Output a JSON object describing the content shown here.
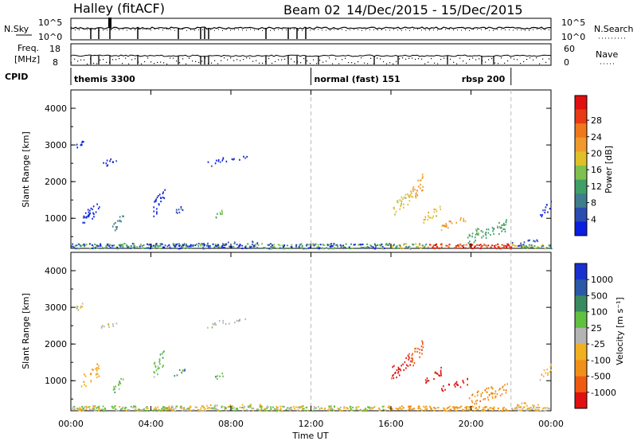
{
  "header": {
    "station": "Halley (fitACF)",
    "beam": "Beam 02",
    "date_range": "14/Dec/2015 - 15/Dec/2015"
  },
  "top_panels": {
    "nsky": {
      "label": "N.Sky",
      "ticks": [
        "10^5",
        "10^0"
      ]
    },
    "nsearch": {
      "label": "N.Search",
      "ticks": [
        "10^5",
        "10^0"
      ]
    },
    "freq": {
      "label_line1": "Freq.",
      "label_line2": "[MHz]",
      "ticks": [
        "18",
        "8"
      ]
    },
    "nave": {
      "label": "Nave",
      "ticks": [
        "60",
        "0"
      ]
    },
    "cpid": {
      "label": "CPID",
      "segments": [
        {
          "name": "themis 3300",
          "start_hour": 0
        },
        {
          "name": "normal (fast) 151",
          "start_hour": 12
        },
        {
          "name": "rbsp 200",
          "start_hour": 22
        }
      ]
    }
  },
  "chart_data": [
    {
      "type": "heatmap",
      "name": "power",
      "ylabel": "Slant Range [km]",
      "xlabel": "",
      "xlim": [
        0,
        24
      ],
      "ylim": [
        180,
        4500
      ],
      "y_ticks": [
        "1000",
        "2000",
        "3000",
        "4000"
      ],
      "x_ticks": [
        "00:00",
        "04:00",
        "08:00",
        "12:00",
        "16:00",
        "20:00",
        "00:00"
      ],
      "colorbar": {
        "label": "Power [dB]",
        "ticks": [
          "4",
          "8",
          "12",
          "16",
          "20",
          "24",
          "28"
        ],
        "colors": [
          "#0a1fe0",
          "#2b4cb0",
          "#3f7d8c",
          "#3f9f66",
          "#80c050",
          "#e0c028",
          "#f09a2c",
          "#f0781c",
          "#e83a14",
          "#e01010"
        ]
      },
      "scatter_regions": [
        {
          "x": [
            0.2,
            0.6
          ],
          "y": [
            2900,
            3150
          ],
          "level": 0
        },
        {
          "x": [
            0.5,
            1.4
          ],
          "y": [
            780,
            1520
          ],
          "level": 0
        },
        {
          "x": [
            2.0,
            2.6
          ],
          "y": [
            600,
            1200
          ],
          "level": 2
        },
        {
          "x": [
            1.5,
            2.3
          ],
          "y": [
            2400,
            2700
          ],
          "level": 0
        },
        {
          "x": [
            4.1,
            4.7
          ],
          "y": [
            1000,
            1950
          ],
          "level": 0
        },
        {
          "x": [
            5.1,
            5.7
          ],
          "y": [
            1100,
            1400
          ],
          "level": 1
        },
        {
          "x": [
            6.8,
            7.6
          ],
          "y": [
            2400,
            2700
          ],
          "level": 0
        },
        {
          "x": [
            7.6,
            8.8
          ],
          "y": [
            2550,
            2720
          ],
          "level": 0
        },
        {
          "x": [
            7.2,
            7.6
          ],
          "y": [
            1000,
            1300
          ],
          "level": 4
        },
        {
          "x": [
            4.0,
            9.5
          ],
          "y": [
            220,
            400
          ],
          "level": 1
        },
        {
          "x": [
            16.0,
            17.0
          ],
          "y": [
            1000,
            1800
          ],
          "level": 5
        },
        {
          "x": [
            17.0,
            17.6
          ],
          "y": [
            1300,
            2300
          ],
          "level": 6
        },
        {
          "x": [
            17.6,
            18.5
          ],
          "y": [
            900,
            1400
          ],
          "level": 5
        },
        {
          "x": [
            18.5,
            19.8
          ],
          "y": [
            700,
            1100
          ],
          "level": 6
        },
        {
          "x": [
            19.8,
            21.8
          ],
          "y": [
            300,
            1000
          ],
          "level": 3
        },
        {
          "x": [
            22.0,
            23.4
          ],
          "y": [
            220,
            500
          ],
          "level": 1
        },
        {
          "x": [
            23.4,
            24.0
          ],
          "y": [
            1000,
            1500
          ],
          "level": 0
        }
      ],
      "bands": [
        {
          "x": [
            0.0,
            15.8
          ],
          "y": [
            190,
            330
          ],
          "levels": [
            0,
            1,
            3,
            4
          ]
        },
        {
          "x": [
            15.8,
            17.8
          ],
          "y": [
            190,
            330
          ],
          "levels": [
            2,
            3,
            4,
            5
          ]
        },
        {
          "x": [
            17.8,
            22.0
          ],
          "y": [
            190,
            320
          ],
          "levels": [
            7,
            8,
            9
          ]
        },
        {
          "x": [
            22.0,
            24.0
          ],
          "y": [
            190,
            300
          ],
          "levels": [
            2,
            3,
            5
          ]
        }
      ]
    },
    {
      "type": "heatmap",
      "name": "velocity",
      "ylabel": "Slant Range [km]",
      "xlabel": "Time UT",
      "xlim": [
        0,
        24
      ],
      "ylim": [
        180,
        4500
      ],
      "y_ticks": [
        "1000",
        "2000",
        "3000",
        "4000"
      ],
      "x_ticks": [
        "00:00",
        "04:00",
        "08:00",
        "12:00",
        "16:00",
        "20:00",
        "00:00"
      ],
      "colorbar": {
        "label": "Velocity [m s⁻¹]",
        "ticks": [
          "1000",
          "500",
          "100",
          "25",
          "-25",
          "-100",
          "-500",
          "-1000"
        ],
        "colors": [
          "#1830d0",
          "#2c58a8",
          "#3a8a60",
          "#60c040",
          "#b4b4b4",
          "#f0b020",
          "#f09018",
          "#f05a10",
          "#e01010"
        ]
      },
      "scatter_regions": [
        {
          "x": [
            0.2,
            0.6
          ],
          "y": [
            2900,
            3150
          ],
          "level": 4
        },
        {
          "x": [
            0.5,
            1.4
          ],
          "y": [
            780,
            1520
          ],
          "level": 5
        },
        {
          "x": [
            2.0,
            2.6
          ],
          "y": [
            600,
            1200
          ],
          "level": 3
        },
        {
          "x": [
            1.5,
            2.3
          ],
          "y": [
            2400,
            2700
          ],
          "level": 4
        },
        {
          "x": [
            4.1,
            4.7
          ],
          "y": [
            1000,
            1950
          ],
          "level": 3
        },
        {
          "x": [
            5.1,
            5.7
          ],
          "y": [
            1100,
            1400
          ],
          "level": 2
        },
        {
          "x": [
            6.8,
            7.6
          ],
          "y": [
            2400,
            2700
          ],
          "level": 4
        },
        {
          "x": [
            7.6,
            8.8
          ],
          "y": [
            2550,
            2720
          ],
          "level": 4
        },
        {
          "x": [
            7.2,
            7.6
          ],
          "y": [
            1000,
            1300
          ],
          "level": 3
        },
        {
          "x": [
            4.0,
            9.5
          ],
          "y": [
            220,
            400
          ],
          "level": 5
        },
        {
          "x": [
            16.0,
            17.0
          ],
          "y": [
            1000,
            1800
          ],
          "level": 8
        },
        {
          "x": [
            17.0,
            17.6
          ],
          "y": [
            1300,
            2300
          ],
          "level": 7
        },
        {
          "x": [
            17.6,
            18.5
          ],
          "y": [
            900,
            1400
          ],
          "level": 8
        },
        {
          "x": [
            18.5,
            19.8
          ],
          "y": [
            700,
            1100
          ],
          "level": 8
        },
        {
          "x": [
            19.8,
            21.8
          ],
          "y": [
            300,
            1000
          ],
          "level": 6
        },
        {
          "x": [
            22.0,
            23.4
          ],
          "y": [
            220,
            500
          ],
          "level": 5
        },
        {
          "x": [
            23.4,
            24.0
          ],
          "y": [
            1000,
            1500
          ],
          "level": 5
        }
      ],
      "bands": [
        {
          "x": [
            0.0,
            15.8
          ],
          "y": [
            190,
            330
          ],
          "levels": [
            3,
            4,
            5
          ]
        },
        {
          "x": [
            15.8,
            17.8
          ],
          "y": [
            190,
            330
          ],
          "levels": [
            5,
            6
          ]
        },
        {
          "x": [
            17.8,
            22.0
          ],
          "y": [
            190,
            320
          ],
          "levels": [
            5,
            6
          ]
        },
        {
          "x": [
            22.0,
            24.0
          ],
          "y": [
            190,
            300
          ],
          "levels": [
            4,
            5
          ]
        }
      ]
    }
  ]
}
